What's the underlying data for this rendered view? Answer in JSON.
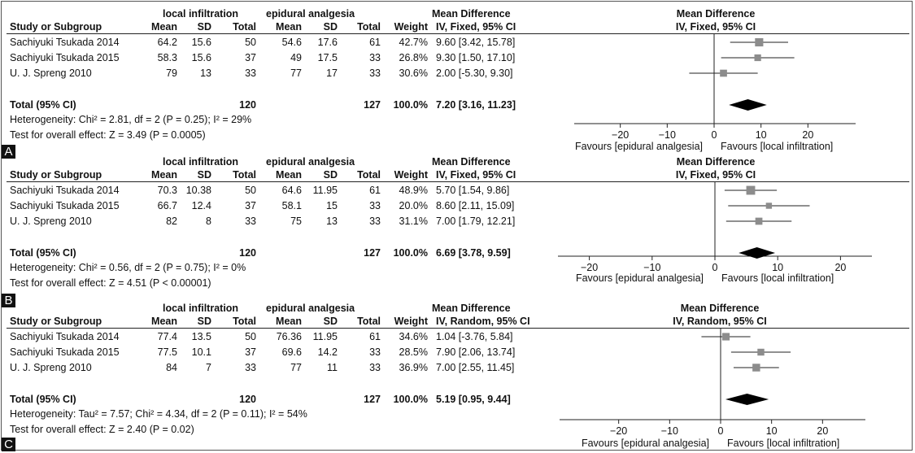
{
  "chart_data": [
    {
      "type": "forest",
      "panel_label": "A",
      "header": {
        "group1": "local infiltration",
        "group2": "epidural analgesia",
        "md_title": "Mean Difference",
        "md_method": "IV, Fixed, 95% CI",
        "plot_title": "Mean Difference",
        "plot_method": "IV, Fixed, 95% CI",
        "study_col": "Study or Subgroup",
        "mean": "Mean",
        "sd": "SD",
        "total": "Total",
        "weight": "Weight"
      },
      "studies": [
        {
          "name": "Sachiyuki Tsukada 2014",
          "m1": "64.2",
          "sd1": "15.6",
          "n1": "50",
          "m2": "54.6",
          "sd2": "17.6",
          "n2": "61",
          "weight": "42.7%",
          "ci_text": "9.60 [3.42, 15.78]",
          "md": 9.6,
          "lo": 3.42,
          "hi": 15.78,
          "w": 42.7
        },
        {
          "name": "Sachiyuki Tsukada 2015",
          "m1": "58.3",
          "sd1": "15.6",
          "n1": "37",
          "m2": "49",
          "sd2": "17.5",
          "n2": "33",
          "weight": "26.8%",
          "ci_text": "9.30 [1.50, 17.10]",
          "md": 9.3,
          "lo": 1.5,
          "hi": 17.1,
          "w": 26.8
        },
        {
          "name": "U. J. Spreng 2010",
          "m1": "79",
          "sd1": "13",
          "n1": "33",
          "m2": "77",
          "sd2": "17",
          "n2": "33",
          "weight": "30.6%",
          "ci_text": "2.00 [-5.30, 9.30]",
          "md": 2.0,
          "lo": -5.3,
          "hi": 9.3,
          "w": 30.6
        }
      ],
      "total": {
        "label": "Total (95% CI)",
        "n1": "120",
        "n2": "127",
        "weight": "100.0%",
        "ci_text": "7.20 [3.16, 11.23]",
        "md": 7.2,
        "lo": 3.16,
        "hi": 11.23
      },
      "heterogeneity": "Heterogeneity: Chi² = 2.81, df = 2 (P = 0.25); I² = 29%",
      "overall": "Test for overall effect: Z = 3.49 (P = 0.0005)",
      "axis": {
        "ticks": [
          -20,
          -10,
          0,
          10,
          20
        ],
        "tick_labels": [
          "−20",
          "−10",
          "0",
          "10",
          "20"
        ],
        "xlim": [
          -30,
          30
        ]
      },
      "favours_left": "Favours [epidural analgesia]",
      "favours_right": "Favours [local infiltration]"
    },
    {
      "type": "forest",
      "panel_label": "B",
      "header": {
        "group1": "local infiltration",
        "group2": "epidural analgesia",
        "md_title": "Mean Difference",
        "md_method": "IV, Fixed, 95% CI",
        "plot_title": "Mean Difference",
        "plot_method": "IV, Fixed, 95% CI",
        "study_col": "Study or Subgroup",
        "mean": "Mean",
        "sd": "SD",
        "total": "Total",
        "weight": "Weight"
      },
      "studies": [
        {
          "name": "Sachiyuki Tsukada 2014",
          "m1": "70.3",
          "sd1": "10.38",
          "n1": "50",
          "m2": "64.6",
          "sd2": "11.95",
          "n2": "61",
          "weight": "48.9%",
          "ci_text": "5.70 [1.54, 9.86]",
          "md": 5.7,
          "lo": 1.54,
          "hi": 9.86,
          "w": 48.9
        },
        {
          "name": "Sachiyuki Tsukada 2015",
          "m1": "66.7",
          "sd1": "12.4",
          "n1": "37",
          "m2": "58.1",
          "sd2": "15",
          "n2": "33",
          "weight": "20.0%",
          "ci_text": "8.60 [2.11, 15.09]",
          "md": 8.6,
          "lo": 2.11,
          "hi": 15.09,
          "w": 20.0
        },
        {
          "name": "U. J. Spreng 2010",
          "m1": "82",
          "sd1": "8",
          "n1": "33",
          "m2": "75",
          "sd2": "13",
          "n2": "33",
          "weight": "31.1%",
          "ci_text": "7.00 [1.79, 12.21]",
          "md": 7.0,
          "lo": 1.79,
          "hi": 12.21,
          "w": 31.1
        }
      ],
      "total": {
        "label": "Total (95% CI)",
        "n1": "120",
        "n2": "127",
        "weight": "100.0%",
        "ci_text": "6.69 [3.78, 9.59]",
        "md": 6.69,
        "lo": 3.78,
        "hi": 9.59
      },
      "heterogeneity": "Heterogeneity: Chi² = 0.56, df = 2 (P = 0.75); I² = 0%",
      "overall": "Test for overall effect: Z = 4.51 (P < 0.00001)",
      "axis": {
        "ticks": [
          -20,
          -10,
          0,
          10,
          20
        ],
        "tick_labels": [
          "−20",
          "−10",
          "0",
          "10",
          "20"
        ],
        "xlim": [
          -25,
          25
        ]
      },
      "favours_left": "Favours [epidural analgesia]",
      "favours_right": "Favours [local infiltration]"
    },
    {
      "type": "forest",
      "panel_label": "C",
      "header": {
        "group1": "local infiltration",
        "group2": "epidural analgesia",
        "md_title": "Mean Difference",
        "md_method": "IV, Random, 95% CI",
        "plot_title": "Mean Difference",
        "plot_method": "IV, Random, 95% CI",
        "study_col": "Study or Subgroup",
        "mean": "Mean",
        "sd": "SD",
        "total": "Total",
        "weight": "Weight"
      },
      "studies": [
        {
          "name": "Sachiyuki Tsukada 2014",
          "m1": "77.4",
          "sd1": "13.5",
          "n1": "50",
          "m2": "76.36",
          "sd2": "11.95",
          "n2": "61",
          "weight": "34.6%",
          "ci_text": "1.04 [-3.76, 5.84]",
          "md": 1.04,
          "lo": -3.76,
          "hi": 5.84,
          "w": 34.6
        },
        {
          "name": "Sachiyuki Tsukada 2015",
          "m1": "77.5",
          "sd1": "10.1",
          "n1": "37",
          "m2": "69.6",
          "sd2": "14.2",
          "n2": "33",
          "weight": "28.5%",
          "ci_text": "7.90 [2.06, 13.74]",
          "md": 7.9,
          "lo": 2.06,
          "hi": 13.74,
          "w": 28.5
        },
        {
          "name": "U. J. Spreng 2010",
          "m1": "84",
          "sd1": "7",
          "n1": "33",
          "m2": "77",
          "sd2": "11",
          "n2": "33",
          "weight": "36.9%",
          "ci_text": "7.00 [2.55, 11.45]",
          "md": 7.0,
          "lo": 2.55,
          "hi": 11.45,
          "w": 36.9
        }
      ],
      "total": {
        "label": "Total (95% CI)",
        "n1": "120",
        "n2": "127",
        "weight": "100.0%",
        "ci_text": "5.19 [0.95, 9.44]",
        "md": 5.19,
        "lo": 0.95,
        "hi": 9.44
      },
      "heterogeneity": "Heterogeneity: Tau² = 7.57; Chi² = 4.34, df = 2 (P = 0.11); I² = 54%",
      "overall": "Test for overall effect: Z = 2.40 (P = 0.02)",
      "axis": {
        "ticks": [
          -20,
          -10,
          0,
          10,
          20
        ],
        "tick_labels": [
          "−20",
          "−10",
          "0",
          "10",
          "20"
        ],
        "xlim": [
          -30,
          30
        ]
      },
      "favours_left": "Favours [epidural analgesia]",
      "favours_right": "Favours [local infiltration]"
    }
  ],
  "colors": {
    "square": "#8c8c8c",
    "diamond": "#000000",
    "line": "#222222"
  }
}
